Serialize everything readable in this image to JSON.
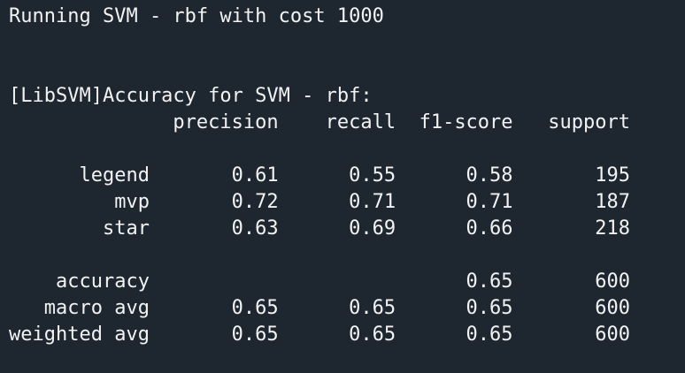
{
  "console": {
    "lines": [
      "Running SVM - rbf with cost 1000",
      "",
      "",
      "[LibSVM]Accuracy for SVM - rbf:",
      "              precision    recall  f1-score   support",
      "",
      "      legend       0.61      0.55      0.58       195",
      "         mvp       0.72      0.71      0.71       187",
      "        star       0.63      0.69      0.66       218",
      "",
      "    accuracy                           0.65       600",
      "   macro avg       0.65      0.65      0.65       600",
      "weighted avg       0.65      0.65      0.65       600"
    ]
  },
  "report": {
    "title": "Running SVM - rbf with cost 1000",
    "subtitle": "[LibSVM]Accuracy for SVM - rbf:",
    "columns": [
      "precision",
      "recall",
      "f1-score",
      "support"
    ],
    "rows": [
      {
        "label": "legend",
        "precision": "0.61",
        "recall": "0.55",
        "f1_score": "0.58",
        "support": "195"
      },
      {
        "label": "mvp",
        "precision": "0.72",
        "recall": "0.71",
        "f1_score": "0.71",
        "support": "187"
      },
      {
        "label": "star",
        "precision": "0.63",
        "recall": "0.69",
        "f1_score": "0.66",
        "support": "218"
      },
      {
        "label": "accuracy",
        "precision": "",
        "recall": "",
        "f1_score": "0.65",
        "support": "600"
      },
      {
        "label": "macro avg",
        "precision": "0.65",
        "recall": "0.65",
        "f1_score": "0.65",
        "support": "600"
      },
      {
        "label": "weighted avg",
        "precision": "0.65",
        "recall": "0.65",
        "f1_score": "0.65",
        "support": "600"
      }
    ]
  }
}
